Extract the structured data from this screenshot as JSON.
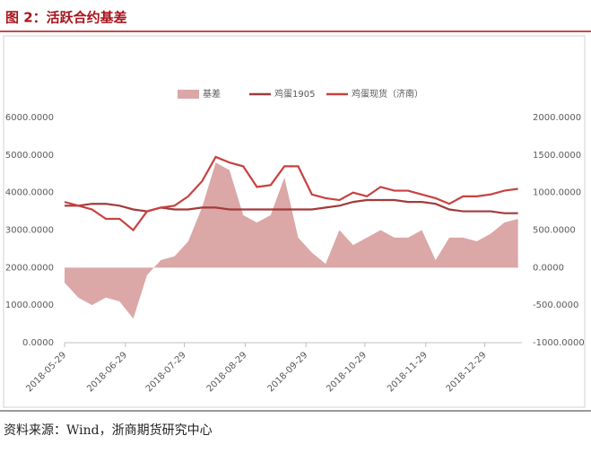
{
  "title": "图 2：活跃合约基差",
  "source": "资料来源：Wind，浙商期货研究中心",
  "chart_data": {
    "type": "line",
    "x": [
      "2018-05-29",
      "2018-06-05",
      "2018-06-12",
      "2018-06-19",
      "2018-06-26",
      "2018-07-03",
      "2018-07-10",
      "2018-07-17",
      "2018-07-24",
      "2018-07-31",
      "2018-08-07",
      "2018-08-14",
      "2018-08-21",
      "2018-08-28",
      "2018-09-04",
      "2018-09-11",
      "2018-09-18",
      "2018-09-25",
      "2018-10-02",
      "2018-10-09",
      "2018-10-16",
      "2018-10-23",
      "2018-10-30",
      "2018-11-06",
      "2018-11-13",
      "2018-11-20",
      "2018-11-27",
      "2018-12-04",
      "2018-12-11",
      "2018-12-18",
      "2018-12-25",
      "2019-01-01",
      "2019-01-08",
      "2019-01-15"
    ],
    "xlim": [
      "2018-05-29",
      "2019-01-17"
    ],
    "xticks": [
      "2018-05-29",
      "2018-06-29",
      "2018-07-29",
      "2018-08-29",
      "2018-09-29",
      "2018-10-29",
      "2018-11-29",
      "2018-12-29"
    ],
    "ylim": [
      0,
      6000
    ],
    "yticks": [
      {
        "value": 0,
        "label": "0.0000"
      },
      {
        "value": 1000,
        "label": "1000.0000"
      },
      {
        "value": 2000,
        "label": "2000.0000"
      },
      {
        "value": 3000,
        "label": "3000.0000"
      },
      {
        "value": 4000,
        "label": "4000.0000"
      },
      {
        "value": 5000,
        "label": "5000.0000"
      },
      {
        "value": 6000,
        "label": "6000.0000"
      }
    ],
    "y2lim": [
      -1000,
      2000
    ],
    "y2ticks": [
      {
        "value": -1000,
        "label": "-1000.0000"
      },
      {
        "value": -500,
        "label": "-500.0000"
      },
      {
        "value": 0,
        "label": "0.0000"
      },
      {
        "value": 500,
        "label": "500.0000"
      },
      {
        "value": 1000,
        "label": "1000.0000"
      },
      {
        "value": 1500,
        "label": "1500.0000"
      },
      {
        "value": 2000,
        "label": "2000.0000"
      }
    ],
    "series": [
      {
        "name": "基差",
        "kind": "area",
        "axis": "y2",
        "color": "#dba7a7",
        "values": [
          -200,
          -400,
          -500,
          -400,
          -450,
          -680,
          -100,
          100,
          150,
          350,
          800,
          1400,
          1300,
          700,
          600,
          700,
          1200,
          400,
          200,
          50,
          500,
          300,
          400,
          500,
          400,
          400,
          500,
          100,
          400,
          400,
          350,
          450,
          600,
          650
        ]
      },
      {
        "name": "鸡蛋1905",
        "kind": "line",
        "color": "#a33a3a",
        "values": [
          3650,
          3650,
          3700,
          3700,
          3650,
          3550,
          3500,
          3600,
          3550,
          3550,
          3600,
          3600,
          3550,
          3550,
          3550,
          3550,
          3550,
          3550,
          3550,
          3600,
          3650,
          3750,
          3800,
          3800,
          3800,
          3750,
          3750,
          3700,
          3550,
          3500,
          3500,
          3500,
          3450,
          3450
        ]
      },
      {
        "name": "鸡蛋现货（济南）",
        "kind": "line",
        "color": "#c8413f",
        "values": [
          3750,
          3650,
          3550,
          3300,
          3300,
          3000,
          3500,
          3600,
          3650,
          3900,
          4300,
          4950,
          4800,
          4700,
          4150,
          4200,
          4700,
          4700,
          3950,
          3850,
          3800,
          4000,
          3900,
          4150,
          4050,
          4050,
          3950,
          3850,
          3700,
          3900,
          3900,
          3950,
          4050,
          4100
        ]
      }
    ]
  }
}
